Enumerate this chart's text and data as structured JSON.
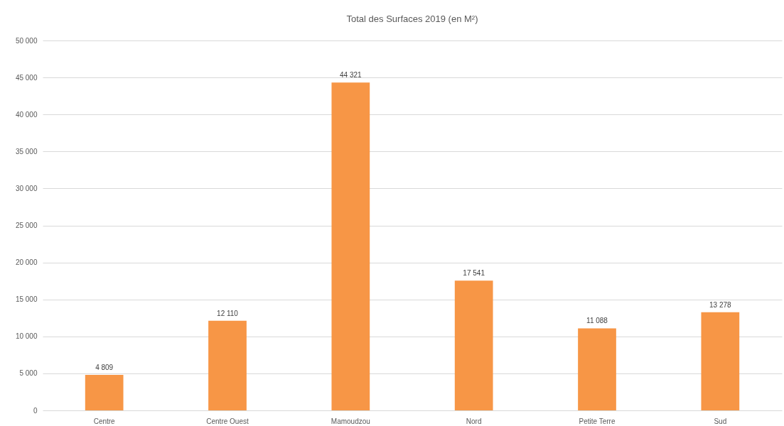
{
  "chart_data": {
    "type": "bar",
    "title": "Total des Surfaces 2019 (en M²)",
    "categories": [
      "Centre",
      "Centre Ouest",
      "Mamoudzou",
      "Nord",
      "Petite Terre",
      "Sud"
    ],
    "values": [
      4809,
      12110,
      44321,
      17541,
      11088,
      13278
    ],
    "value_labels": [
      "4 809",
      "12 110",
      "44 321",
      "17 541",
      "11 088",
      "13 278"
    ],
    "color": "#f79646",
    "ylim": [
      0,
      50000
    ],
    "yticks": [
      0,
      {
        "value": 5000,
        "label": "5 000"
      },
      {
        "value": 10000,
        "label": "10 000"
      },
      {
        "value": 15000,
        "label": "15 000"
      },
      {
        "value": 20000,
        "label": "20 000"
      },
      {
        "value": 25000,
        "label": "25 000"
      },
      {
        "value": 30000,
        "label": "30 000"
      },
      {
        "value": 35000,
        "label": "35 000"
      },
      {
        "value": 40000,
        "label": "40 000"
      },
      {
        "value": 45000,
        "label": "45 000"
      },
      {
        "value": 50000,
        "label": "50 000"
      }
    ],
    "grid": "y"
  }
}
